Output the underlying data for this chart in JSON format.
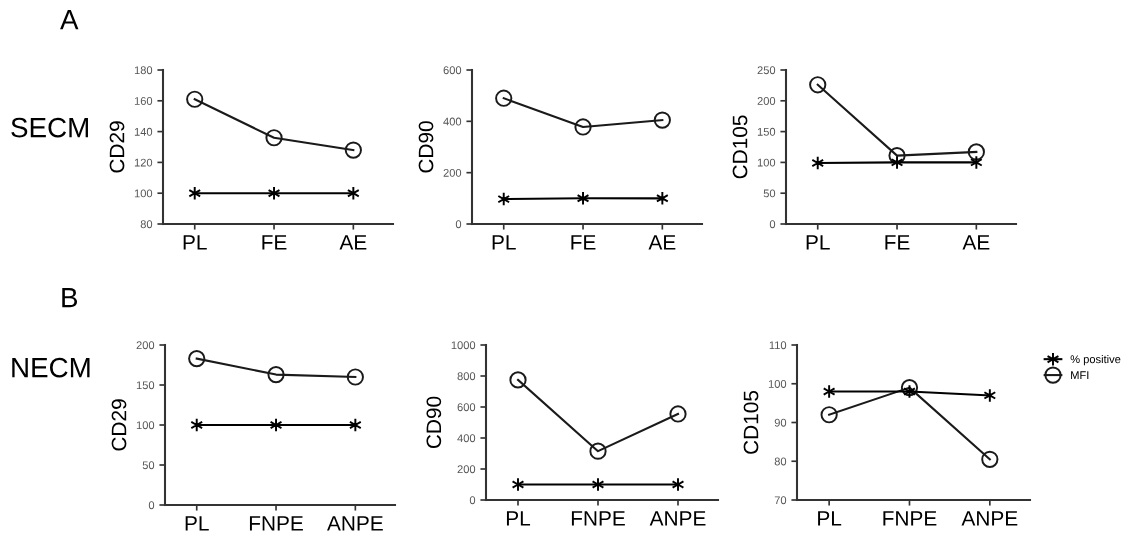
{
  "chart_data": [
    {
      "type": "line",
      "ylabel": "CD29",
      "annotations": [
        "A",
        "SECM"
      ],
      "categories": [
        "PL",
        "FE",
        "AE"
      ],
      "ylim": [
        80,
        180
      ],
      "yticks": [
        80,
        100,
        120,
        140,
        160,
        180
      ],
      "grid": false,
      "legend": false,
      "series": [
        {
          "color": "#000000",
          "marker": "cross",
          "values": [
            100,
            100,
            100
          ]
        },
        {
          "color": "#1a1a1a",
          "marker": "circle",
          "values": [
            161,
            136,
            128
          ]
        }
      ]
    },
    {
      "type": "line",
      "ylabel": "CD90",
      "categories": [
        "PL",
        "FE",
        "AE"
      ],
      "ylim": [
        0,
        600
      ],
      "yticks": [
        0,
        200,
        400,
        600
      ],
      "grid": false,
      "legend": false,
      "series": [
        {
          "color": "#000000",
          "marker": "cross",
          "values": [
            97,
            100,
            100
          ]
        },
        {
          "color": "#1a1a1a",
          "marker": "circle",
          "values": [
            490,
            378,
            405
          ]
        }
      ]
    },
    {
      "type": "line",
      "ylabel": "CD105",
      "categories": [
        "PL",
        "FE",
        "AE"
      ],
      "ylim": [
        0,
        250
      ],
      "yticks": [
        0,
        50,
        100,
        150,
        200,
        250
      ],
      "grid": false,
      "legend": false,
      "series": [
        {
          "color": "#000000",
          "marker": "cross",
          "values": [
            99,
            100,
            100
          ]
        },
        {
          "color": "#1a1a1a",
          "marker": "circle",
          "values": [
            226,
            111,
            117
          ]
        }
      ]
    },
    {
      "type": "line",
      "ylabel": "CD29",
      "annotations": [
        "B",
        "NECM"
      ],
      "categories": [
        "PL",
        "FNPE",
        "ANPE"
      ],
      "ylim": [
        0,
        200
      ],
      "yticks": [
        0,
        50,
        100,
        150,
        200
      ],
      "grid": false,
      "legend": false,
      "series": [
        {
          "color": "#000000",
          "marker": "cross",
          "values": [
            100,
            100,
            100
          ]
        },
        {
          "color": "#1a1a1a",
          "marker": "circle",
          "values": [
            183,
            163,
            160
          ]
        }
      ]
    },
    {
      "type": "line",
      "ylabel": "CD90",
      "categories": [
        "PL",
        "FNPE",
        "ANPE"
      ],
      "ylim": [
        0,
        1000
      ],
      "yticks": [
        0,
        200,
        400,
        600,
        800,
        1000
      ],
      "grid": false,
      "legend": false,
      "series": [
        {
          "color": "#000000",
          "marker": "cross",
          "values": [
            100,
            100,
            100
          ]
        },
        {
          "color": "#1a1a1a",
          "marker": "circle",
          "values": [
            775,
            315,
            555
          ]
        }
      ]
    },
    {
      "type": "line",
      "ylabel": "CD105",
      "categories": [
        "PL",
        "FNPE",
        "ANPE"
      ],
      "ylim": [
        70,
        110
      ],
      "yticks": [
        70,
        80,
        90,
        100,
        110
      ],
      "grid": false,
      "legend": "top right",
      "series": [
        {
          "name": "% positive",
          "color": "#000000",
          "marker": "cross",
          "values": [
            98,
            98,
            97
          ]
        },
        {
          "name": "MFI",
          "color": "#1a1a1a",
          "marker": "circle",
          "values": [
            92,
            99,
            80.5
          ]
        }
      ]
    }
  ]
}
